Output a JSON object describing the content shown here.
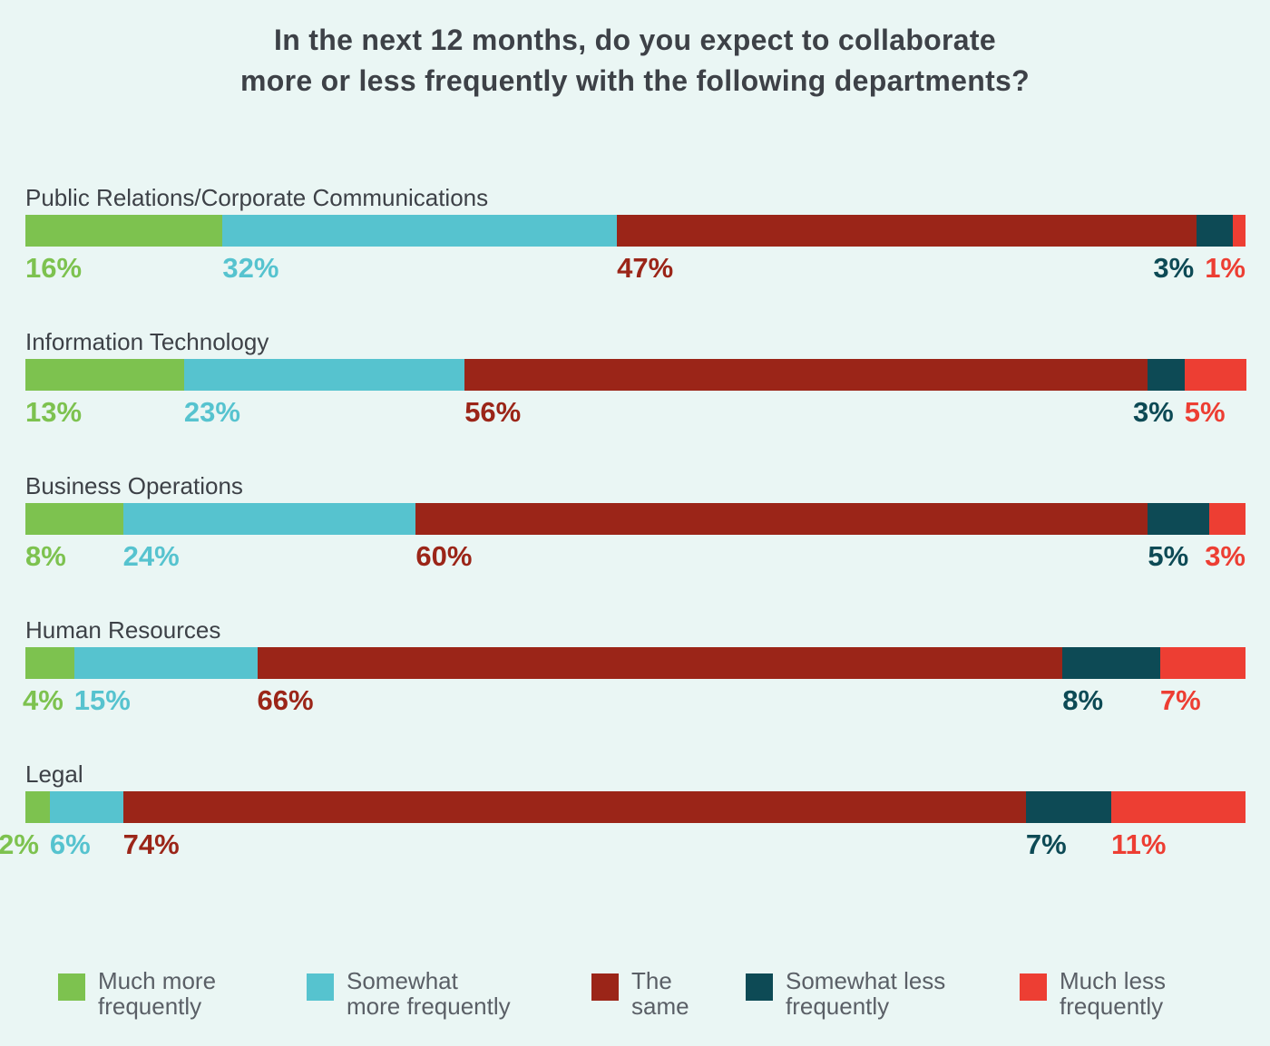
{
  "colors": {
    "much_more": "#7dc24f",
    "somewhat_more": "#56c3cf",
    "same": "#9b2518",
    "somewhat_less": "#0d4a55",
    "much_less": "#ed3e33"
  },
  "chart_data": {
    "type": "bar",
    "orientation": "horizontal",
    "stacked": true,
    "title": [
      "In the next 12 months, do you expect to collaborate",
      "more or less frequently with the following departments?"
    ],
    "categories": [
      "Public Relations/Corporate Communications",
      "Information Technology",
      "Business Operations",
      "Human Resources",
      "Legal"
    ],
    "series": [
      {
        "name": [
          "Much more",
          "frequently"
        ],
        "key": "much_more",
        "values": [
          16,
          13,
          8,
          4,
          2
        ]
      },
      {
        "name": [
          "Somewhat",
          "more frequently"
        ],
        "key": "somewhat_more",
        "values": [
          32,
          23,
          24,
          15,
          6
        ]
      },
      {
        "name": [
          "The",
          "same"
        ],
        "key": "same",
        "values": [
          47,
          56,
          60,
          66,
          74
        ]
      },
      {
        "name": [
          "Somewhat less",
          "frequently"
        ],
        "key": "somewhat_less",
        "values": [
          3,
          3,
          5,
          8,
          7
        ]
      },
      {
        "name": [
          "Much less",
          "frequently"
        ],
        "key": "much_less",
        "values": [
          1,
          5,
          3,
          7,
          11
        ]
      }
    ],
    "value_suffix": "%",
    "legend_position": "bottom"
  }
}
